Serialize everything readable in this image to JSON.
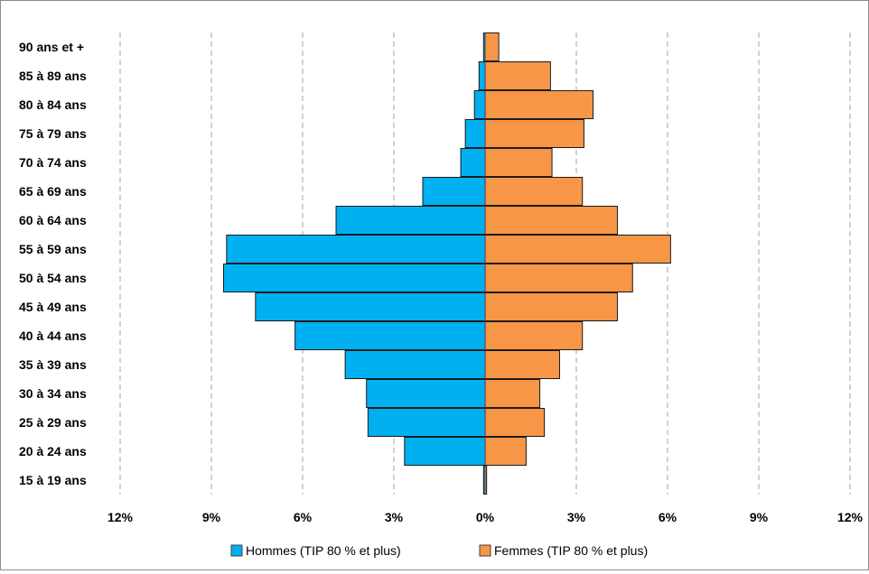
{
  "chart_data": {
    "type": "bar",
    "orientation": "horizontal",
    "layout": "population-pyramid",
    "categories": [
      "15 à 19 ans",
      "20 à 24 ans",
      "25 à 29 ans",
      "30 à 34 ans",
      "35 à 39 ans",
      "40 à 44 ans",
      "45 à 49 ans",
      "50 à 54 ans",
      "55 à 59 ans",
      "60 à 64 ans",
      "65 à 69 ans",
      "70 à 74 ans",
      "75 à 79 ans",
      "80 à 84 ans",
      "85 à 89 ans",
      "90 ans et +"
    ],
    "series": [
      {
        "name": "Hommes (TIP 80 % et plus)",
        "color": "#00b0f0",
        "side": "left",
        "values": [
          0.05,
          2.65,
          3.85,
          3.9,
          4.6,
          6.25,
          7.55,
          8.6,
          8.5,
          4.9,
          2.05,
          0.8,
          0.65,
          0.35,
          0.2,
          0.05
        ]
      },
      {
        "name": "Femmes (TIP 80 % et plus)",
        "color": "#f79646",
        "side": "right",
        "values": [
          0.05,
          1.35,
          1.95,
          1.8,
          2.45,
          3.2,
          4.35,
          4.85,
          6.1,
          4.35,
          3.2,
          2.2,
          3.25,
          3.55,
          2.15,
          0.45
        ]
      }
    ],
    "x_ticks": [
      "12%",
      "9%",
      "6%",
      "3%",
      "0%",
      "3%",
      "6%",
      "9%",
      "12%"
    ],
    "xlim": [
      -12,
      12
    ],
    "unit": "%",
    "grid": "vertical dashed",
    "legend_position": "bottom"
  }
}
